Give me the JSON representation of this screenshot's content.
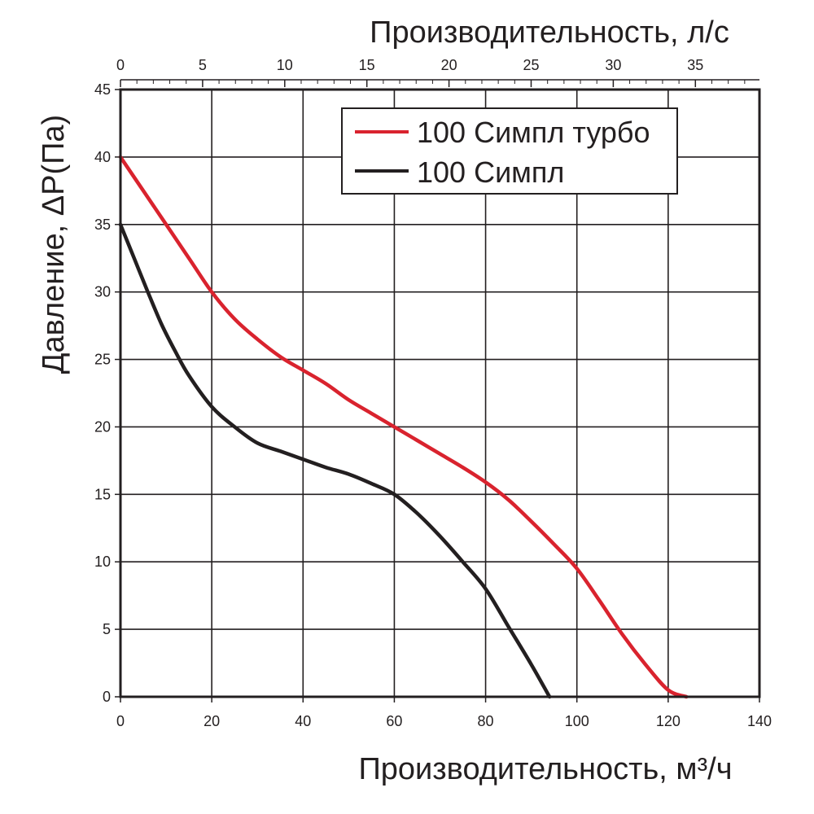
{
  "chart_data": {
    "type": "line",
    "title": "",
    "xlabel": "Производительность, м³/ч",
    "x2label": "Производительность, л/с",
    "ylabel": "Давление, ΔP(Па)",
    "xlim": [
      0,
      140
    ],
    "x2lim": [
      0,
      38.9
    ],
    "ylim": [
      0,
      45
    ],
    "x_ticks": [
      "0",
      "20",
      "40",
      "60",
      "80",
      "100",
      "120",
      "140"
    ],
    "x2_ticks": [
      "0",
      "5",
      "10",
      "15",
      "20",
      "25",
      "30",
      "35"
    ],
    "y_ticks": [
      "0",
      "5",
      "10",
      "15",
      "20",
      "25",
      "30",
      "35",
      "40",
      "45"
    ],
    "grid": true,
    "legend_position": "top-right",
    "series": [
      {
        "name": "100 Симпл турбо",
        "color": "#d9232e",
        "x": [
          0,
          5,
          10,
          15,
          20,
          25,
          30,
          35,
          40,
          45,
          50,
          55,
          60,
          65,
          70,
          75,
          80,
          85,
          90,
          95,
          100,
          105,
          110,
          115,
          120,
          124
        ],
        "y": [
          40,
          37.5,
          35,
          32.5,
          30,
          28,
          26.5,
          25.2,
          24.2,
          23.2,
          22,
          21,
          20,
          19,
          18,
          17,
          15.9,
          14.6,
          13,
          11.3,
          9.5,
          7.1,
          4.6,
          2.4,
          0.5,
          0
        ]
      },
      {
        "name": "100 Симпл",
        "color": "#231f20",
        "x": [
          0,
          3,
          6,
          9,
          12,
          15,
          20,
          25,
          30,
          35,
          40,
          45,
          50,
          55,
          60,
          65,
          70,
          75,
          80,
          85,
          90,
          94
        ],
        "y": [
          35,
          32.5,
          30,
          27.6,
          25.6,
          23.8,
          21.5,
          20,
          18.8,
          18.2,
          17.6,
          17,
          16.5,
          15.8,
          15,
          13.6,
          11.9,
          10,
          8,
          5.2,
          2.4,
          0
        ]
      }
    ]
  }
}
